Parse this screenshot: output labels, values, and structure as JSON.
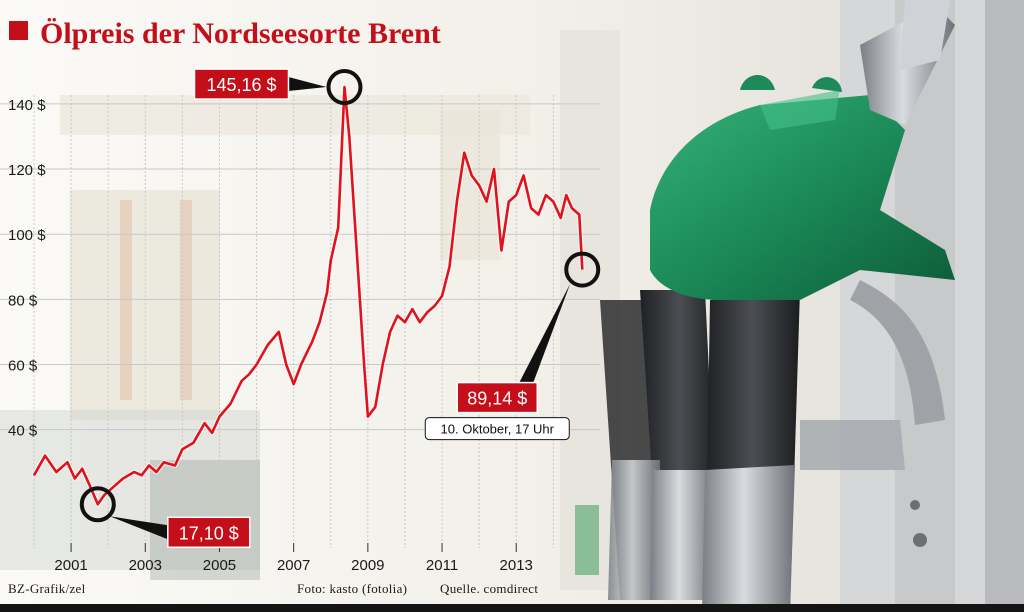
{
  "header": {
    "title": "Ölpreis der Nordseesorte Brent"
  },
  "credits": {
    "graphic": "BZ-Grafik/zel",
    "photo": "Foto: kasto (fotolia)",
    "source": "Quelle. comdirect"
  },
  "colors": {
    "accent": "#c40f1a",
    "line": "#e0121c",
    "callout": "#c40f1a",
    "grid": "#c8c8c8",
    "nozzle_green": "#1d8a5a"
  },
  "chart_data": {
    "type": "line",
    "title": "Ölpreis der Nordseesorte Brent",
    "xlabel": "",
    "ylabel": "",
    "x_ticks": [
      "2001",
      "2003",
      "2005",
      "2007",
      "2009",
      "2011",
      "2013"
    ],
    "y_ticks": [
      "40 $",
      "60 $",
      "80 $",
      "100 $",
      "120 $",
      "140 $"
    ],
    "y_tick_values": [
      40,
      60,
      80,
      100,
      120,
      140
    ],
    "xlim": [
      2000.0,
      2014.8
    ],
    "ylim": [
      0,
      155
    ],
    "grid": true,
    "series": [
      {
        "x": [
          2000.0,
          2000.3,
          2000.6,
          2000.9,
          2001.1,
          2001.3,
          2001.5,
          2001.72,
          2001.9,
          2002.1,
          2002.4,
          2002.7,
          2002.9,
          2003.1,
          2003.3,
          2003.5,
          2003.8,
          2004.0,
          2004.3,
          2004.6,
          2004.8,
          2005.0,
          2005.3,
          2005.6,
          2005.8,
          2006.0,
          2006.3,
          2006.6,
          2006.8,
          2007.0,
          2007.2,
          2007.5,
          2007.7,
          2007.9,
          2008.0,
          2008.2,
          2008.37,
          2008.5,
          2008.7,
          2008.9,
          2009.0,
          2009.2,
          2009.4,
          2009.6,
          2009.8,
          2010.0,
          2010.2,
          2010.4,
          2010.6,
          2010.8,
          2011.0,
          2011.2,
          2011.4,
          2011.6,
          2011.8,
          2012.0,
          2012.2,
          2012.4,
          2012.6,
          2012.8,
          2013.0,
          2013.2,
          2013.4,
          2013.6,
          2013.8,
          2014.0,
          2014.2,
          2014.35,
          2014.5,
          2014.7,
          2014.78
        ],
        "y": [
          26,
          32,
          27,
          30,
          25,
          28,
          23,
          17.1,
          20,
          22,
          25,
          27,
          26,
          29,
          27,
          30,
          29,
          34,
          36,
          42,
          39,
          44,
          48,
          55,
          57,
          60,
          66,
          70,
          60,
          54,
          60,
          67,
          73,
          82,
          92,
          102,
          145.16,
          130,
          95,
          60,
          44,
          47,
          60,
          70,
          75,
          73,
          77,
          73,
          76,
          78,
          81,
          90,
          110,
          125,
          118,
          115,
          110,
          120,
          95,
          110,
          112,
          118,
          108,
          106,
          112,
          110,
          105,
          112,
          108,
          106,
          89.14
        ]
      }
    ],
    "annotations": [
      {
        "label": "145,16 $",
        "x": 2008.37,
        "y": 145.16
      },
      {
        "label": "17,10 $",
        "x": 2001.72,
        "y": 17.1
      },
      {
        "label": "89,14 $",
        "x": 2014.78,
        "y": 89.14,
        "note": "10. Oktober, 17 Uhr"
      }
    ]
  }
}
